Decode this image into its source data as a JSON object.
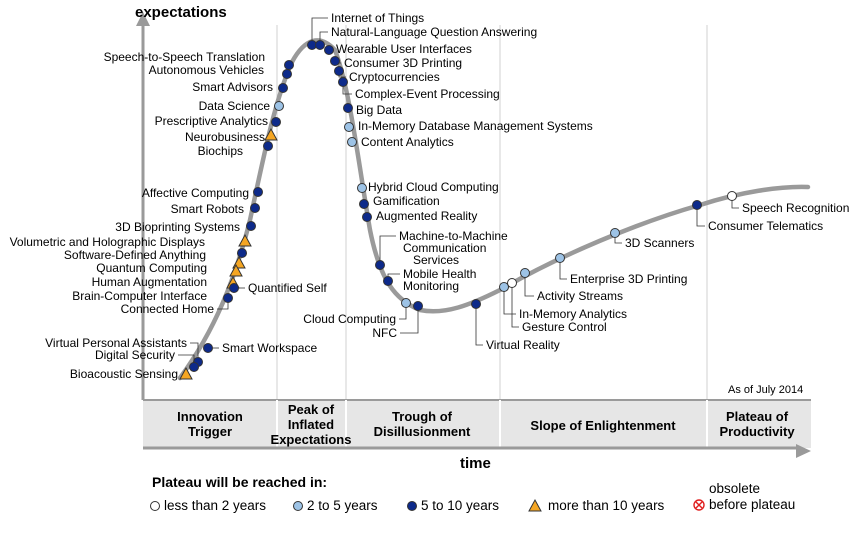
{
  "title": "",
  "y_axis_label": "expectations",
  "x_axis_label": "time",
  "as_of": "As of July 2014",
  "phases": [
    {
      "lines": [
        "Innovation",
        "Trigger"
      ]
    },
    {
      "lines": [
        "Peak of",
        "Inflated",
        "Expectations"
      ]
    },
    {
      "lines": [
        "Trough of",
        "Disillusionment"
      ]
    },
    {
      "lines": [
        "Slope of Enlightenment"
      ]
    },
    {
      "lines": [
        "Plateau of",
        "Productivity"
      ]
    }
  ],
  "legend": {
    "title": "Plateau will be reached in:",
    "items": [
      {
        "label": "less than 2 years",
        "symbol": "circle-white"
      },
      {
        "label": "2 to 5 years",
        "symbol": "circle-lightblue"
      },
      {
        "label": "5 to 10 years",
        "symbol": "circle-darkblue"
      },
      {
        "label": "more than 10 years",
        "symbol": "triangle-orange"
      },
      {
        "label_lines": [
          "obsolete",
          "before plateau"
        ],
        "symbol": "x-circle-red"
      }
    ]
  },
  "colors": {
    "curve": "#9a9a9a",
    "circle_white": "#ffffff",
    "circle_lightblue": "#9dc3e6",
    "circle_darkblue": "#0d2a8a",
    "triangle_orange": "#f5a623",
    "obsolete_red": "#e02020",
    "phase_band": "#e6e6e6"
  },
  "technologies": [
    {
      "name": "Internet of Things",
      "category": "5 to 10 years"
    },
    {
      "name": "Natural-Language Question Answering",
      "category": "5 to 10 years"
    },
    {
      "name": "Wearable User Interfaces",
      "category": "5 to 10 years"
    },
    {
      "name": "Consumer 3D Printing",
      "category": "5 to 10 years"
    },
    {
      "name": "Cryptocurrencies",
      "category": "5 to 10 years"
    },
    {
      "name": "Complex-Event Processing",
      "category": "5 to 10 years"
    },
    {
      "name": "Big Data",
      "category": "5 to 10 years"
    },
    {
      "name": "In-Memory Database Management Systems",
      "category": "2 to 5 years"
    },
    {
      "name": "Content Analytics",
      "category": "2 to 5 years"
    },
    {
      "name": "Speech-to-Speech Translation",
      "category": "5 to 10 years"
    },
    {
      "name": "Autonomous Vehicles",
      "category": "5 to 10 years"
    },
    {
      "name": "Smart Advisors",
      "category": "5 to 10 years"
    },
    {
      "name": "Data Science",
      "category": "2 to 5 years"
    },
    {
      "name": "Prescriptive Analytics",
      "category": "5 to 10 years"
    },
    {
      "name": "Neurobusiness",
      "category": "more than 10 years"
    },
    {
      "name": "Biochips",
      "category": "5 to 10 years"
    },
    {
      "name": "Affective Computing",
      "category": "5 to 10 years"
    },
    {
      "name": "Smart Robots",
      "category": "5 to 10 years"
    },
    {
      "name": "3D Bioprinting Systems",
      "category": "5 to 10 years"
    },
    {
      "name": "Volumetric and Holographic Displays",
      "category": "more than 10 years"
    },
    {
      "name": "Software-Defined Anything",
      "category": "5 to 10 years"
    },
    {
      "name": "Quantum Computing",
      "category": "more than 10 years"
    },
    {
      "name": "Human Augmentation",
      "category": "more than 10 years"
    },
    {
      "name": "Brain-Computer Interface",
      "category": "more than 10 years"
    },
    {
      "name": "Quantified Self",
      "category": "5 to 10 years"
    },
    {
      "name": "Connected Home",
      "category": "5 to 10 years"
    },
    {
      "name": "Virtual Personal Assistants",
      "category": "5 to 10 years"
    },
    {
      "name": "Digital Security",
      "category": "5 to 10 years"
    },
    {
      "name": "Smart Workspace",
      "category": "5 to 10 years"
    },
    {
      "name": "Bioacoustic Sensing",
      "category": "more than 10 years"
    },
    {
      "name": "Hybrid Cloud Computing",
      "category": "2 to 5 years"
    },
    {
      "name": "Gamification",
      "category": "5 to 10 years"
    },
    {
      "name": "Augmented Reality",
      "category": "5 to 10 years"
    },
    {
      "name": "Machine-to-Machine Communication Services",
      "category": "5 to 10 years"
    },
    {
      "name": "Mobile Health Monitoring",
      "category": "5 to 10 years"
    },
    {
      "name": "Cloud Computing",
      "category": "2 to 5 years"
    },
    {
      "name": "NFC",
      "category": "5 to 10 years"
    },
    {
      "name": "Virtual Reality",
      "category": "5 to 10 years"
    },
    {
      "name": "In-Memory Analytics",
      "category": "2 to 5 years"
    },
    {
      "name": "Gesture Control",
      "category": "less than 2 years"
    },
    {
      "name": "Activity Streams",
      "category": "2 to 5 years"
    },
    {
      "name": "Enterprise 3D Printing",
      "category": "2 to 5 years"
    },
    {
      "name": "3D Scanners",
      "category": "2 to 5 years"
    },
    {
      "name": "Consumer Telematics",
      "category": "5 to 10 years"
    },
    {
      "name": "Speech Recognition",
      "category": "less than 2 years"
    }
  ]
}
